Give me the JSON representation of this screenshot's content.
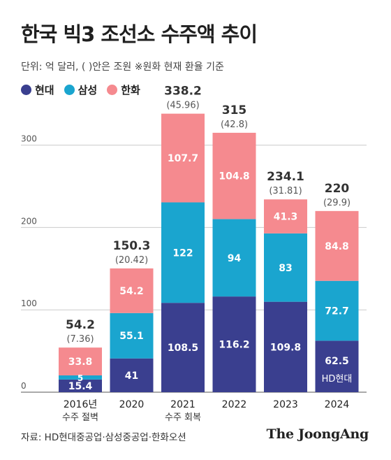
{
  "title": "한국 빅3 조선소 수주액 추이",
  "subtitle": "단위: 억 달러, ( )안은 조원  ※원화 현재 환율 기준",
  "source": "자료: HD현대중공업·삼성중공업·한화오션",
  "brand": "The JoongAng",
  "colors": {
    "hd": "#3a3f8f",
    "samsung": "#1aa5cf",
    "hanwha": "#f58a8f",
    "grid": "#cccccc"
  },
  "chart_data": {
    "type": "bar",
    "stacked": true,
    "categories": [
      "2016년",
      "2020",
      "2021",
      "2022",
      "2023",
      "2024"
    ],
    "category_notes": [
      "수주 절벽",
      "",
      "수주 회복",
      "",
      "",
      ""
    ],
    "series": [
      {
        "name": "현대",
        "values": [
          15.4,
          41,
          108.5,
          116.2,
          109.8,
          62.5
        ]
      },
      {
        "name": "삼성",
        "values": [
          5,
          55.1,
          122,
          94,
          83,
          72.7
        ]
      },
      {
        "name": "한화",
        "values": [
          33.8,
          54.2,
          107.7,
          104.8,
          41.3,
          84.8
        ]
      }
    ],
    "totals": [
      "54.2",
      "150.3",
      "338.2",
      "315",
      "234.1",
      "220"
    ],
    "totals_krw": [
      "(7.36)",
      "(20.42)",
      "(45.96)",
      "(42.8)",
      "(31.81)",
      "(29.9)"
    ],
    "bar_annotations": [
      "",
      "",
      "",
      "",
      "",
      "HD현대"
    ],
    "yticks": [
      0,
      100,
      200,
      300
    ],
    "ylim": [
      0,
      345
    ],
    "grid": true,
    "legend": "top-left"
  }
}
